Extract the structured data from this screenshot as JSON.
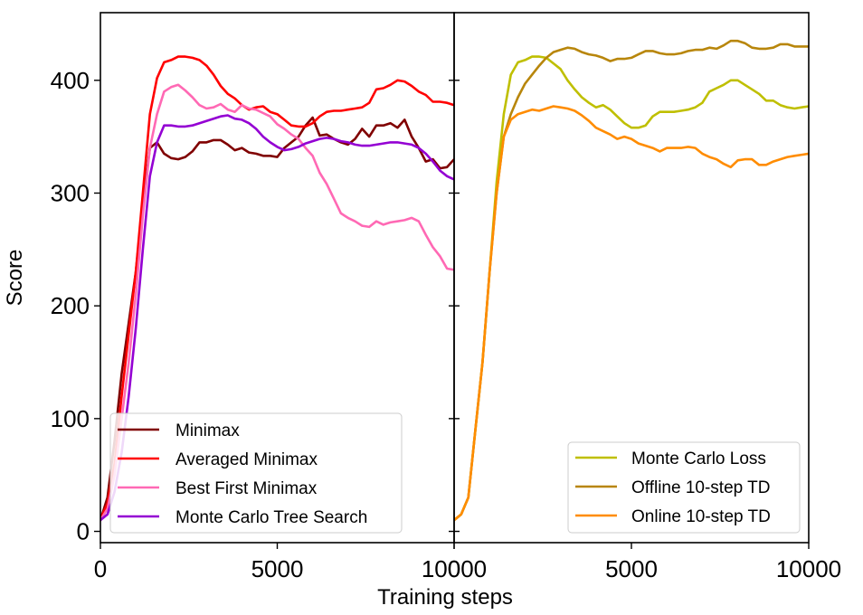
{
  "chart_data": {
    "type": "line",
    "shared_ylabel": "Score",
    "shared_xlabel": "Training steps",
    "ylim": [
      -10,
      460
    ],
    "yticks": [
      0,
      100,
      200,
      300,
      400
    ],
    "ytick_labels": [
      "0",
      "100",
      "200",
      "300",
      "400"
    ],
    "panels": [
      {
        "xlim": [
          0,
          10000
        ],
        "xticks": [
          0,
          5000,
          10000
        ],
        "xtick_labels": [
          "0",
          "5000",
          "10000"
        ],
        "legend_position": "lower-left",
        "series": [
          {
            "name": "Minimax",
            "color": "#800000",
            "x": [
              0,
              200,
              400,
              600,
              800,
              1000,
              1200,
              1400,
              1600,
              1800,
              2000,
              2200,
              2400,
              2600,
              2800,
              3000,
              3200,
              3400,
              3600,
              3800,
              4000,
              4200,
              4400,
              4600,
              4800,
              5000,
              5200,
              5400,
              5600,
              5800,
              6000,
              6200,
              6400,
              6600,
              6800,
              7000,
              7200,
              7400,
              7600,
              7800,
              8000,
              8200,
              8400,
              8600,
              8800,
              9000,
              9200,
              9400,
              9600,
              9800,
              10000
            ],
            "y": [
              10,
              30,
              80,
              140,
              185,
              230,
              290,
              340,
              345,
              335,
              331,
              330,
              332,
              337,
              345,
              345,
              347,
              347,
              343,
              338,
              340,
              336,
              335,
              333,
              333,
              332,
              340,
              345,
              350,
              360,
              367,
              351,
              352,
              348,
              345,
              343,
              348,
              357,
              350,
              360,
              360,
              362,
              358,
              365,
              350,
              340,
              328,
              330,
              322,
              323,
              330
            ]
          },
          {
            "name": "Averaged Minimax",
            "color": "#ff0000",
            "x": [
              0,
              200,
              400,
              600,
              800,
              1000,
              1200,
              1400,
              1600,
              1800,
              2000,
              2200,
              2400,
              2600,
              2800,
              3000,
              3200,
              3400,
              3600,
              3800,
              4000,
              4200,
              4400,
              4600,
              4800,
              5000,
              5200,
              5400,
              5600,
              5800,
              6000,
              6200,
              6400,
              6600,
              6800,
              7000,
              7200,
              7400,
              7600,
              7800,
              8000,
              8200,
              8400,
              8600,
              8800,
              9000,
              9200,
              9400,
              9600,
              9800,
              10000
            ],
            "y": [
              10,
              25,
              60,
              120,
              175,
              230,
              300,
              370,
              402,
              416,
              418,
              421,
              421,
              420,
              418,
              413,
              405,
              395,
              388,
              384,
              378,
              374,
              376,
              377,
              372,
              370,
              365,
              360,
              359,
              359,
              362,
              368,
              372,
              373,
              373,
              374,
              375,
              376,
              380,
              392,
              393,
              396,
              400,
              399,
              395,
              390,
              387,
              381,
              381,
              380,
              378
            ]
          },
          {
            "name": "Best First Minimax",
            "color": "#ff69b4",
            "x": [
              0,
              200,
              400,
              600,
              800,
              1000,
              1200,
              1400,
              1600,
              1800,
              2000,
              2200,
              2400,
              2600,
              2800,
              3000,
              3200,
              3400,
              3600,
              3800,
              4000,
              4200,
              4400,
              4600,
              4800,
              5000,
              5200,
              5400,
              5600,
              5800,
              6000,
              6200,
              6400,
              6600,
              6800,
              7000,
              7200,
              7400,
              7600,
              7800,
              8000,
              8200,
              8400,
              8600,
              8800,
              9000,
              9200,
              9400,
              9600,
              9800,
              10000
            ],
            "y": [
              10,
              20,
              50,
              100,
              150,
              210,
              280,
              340,
              370,
              390,
              394,
              396,
              391,
              385,
              378,
              375,
              376,
              379,
              374,
              372,
              378,
              375,
              374,
              371,
              368,
              361,
              357,
              352,
              348,
              340,
              333,
              318,
              308,
              295,
              282,
              278,
              275,
              271,
              270,
              275,
              272,
              274,
              275,
              276,
              278,
              275,
              263,
              252,
              244,
              233,
              232
            ]
          },
          {
            "name": "Monte Carlo Tree Search",
            "color": "#9400d3",
            "x": [
              0,
              200,
              400,
              600,
              800,
              1000,
              1200,
              1400,
              1600,
              1800,
              2000,
              2200,
              2400,
              2600,
              2800,
              3000,
              3200,
              3400,
              3600,
              3800,
              4000,
              4200,
              4400,
              4600,
              4800,
              5000,
              5200,
              5400,
              5600,
              5800,
              6000,
              6200,
              6400,
              6600,
              6800,
              7000,
              7200,
              7400,
              7600,
              7800,
              8000,
              8200,
              8400,
              8600,
              8800,
              9000,
              9200,
              9400,
              9600,
              9800,
              10000
            ],
            "y": [
              10,
              15,
              35,
              70,
              120,
              180,
              250,
              315,
              345,
              360,
              360,
              359,
              359,
              360,
              362,
              364,
              366,
              368,
              369,
              366,
              365,
              362,
              357,
              350,
              345,
              341,
              338,
              339,
              341,
              344,
              346,
              348,
              349,
              348,
              346,
              345,
              343,
              342,
              342,
              343,
              344,
              345,
              345,
              344,
              343,
              340,
              335,
              328,
              320,
              315,
              312
            ]
          }
        ]
      },
      {
        "xlim": [
          0,
          10000
        ],
        "xticks": [
          0,
          5000,
          10000
        ],
        "xtick_labels": [
          "0",
          "5000",
          "10000"
        ],
        "legend_position": "lower-right",
        "series": [
          {
            "name": "Monte Carlo Loss",
            "color": "#bfbf00",
            "x": [
              0,
              200,
              400,
              600,
              800,
              1000,
              1200,
              1400,
              1600,
              1800,
              2000,
              2200,
              2400,
              2600,
              2800,
              3000,
              3200,
              3400,
              3600,
              3800,
              4000,
              4200,
              4400,
              4600,
              4800,
              5000,
              5200,
              5400,
              5600,
              5800,
              6000,
              6200,
              6400,
              6600,
              6800,
              7000,
              7200,
              7400,
              7600,
              7800,
              8000,
              8200,
              8400,
              8600,
              8800,
              9000,
              9200,
              9400,
              9600,
              9800,
              10000
            ],
            "y": [
              10,
              15,
              30,
              90,
              150,
              230,
              310,
              370,
              405,
              416,
              418,
              421,
              421,
              420,
              415,
              410,
              400,
              392,
              385,
              380,
              376,
              378,
              374,
              368,
              362,
              358,
              358,
              360,
              368,
              372,
              372,
              372,
              373,
              374,
              376,
              380,
              390,
              393,
              396,
              400,
              400,
              396,
              392,
              388,
              382,
              382,
              378,
              376,
              375,
              376,
              377
            ]
          },
          {
            "name": "Offline 10-step TD",
            "color": "#b8860b",
            "x": [
              0,
              200,
              400,
              600,
              800,
              1000,
              1200,
              1400,
              1600,
              1800,
              2000,
              2200,
              2400,
              2600,
              2800,
              3000,
              3200,
              3400,
              3600,
              3800,
              4000,
              4200,
              4400,
              4600,
              4800,
              5000,
              5200,
              5400,
              5600,
              5800,
              6000,
              6200,
              6400,
              6600,
              6800,
              7000,
              7200,
              7400,
              7600,
              7800,
              8000,
              8200,
              8400,
              8600,
              8800,
              9000,
              9200,
              9400,
              9600,
              9800,
              10000
            ],
            "y": [
              10,
              15,
              30,
              90,
              150,
              230,
              300,
              350,
              370,
              385,
              397,
              405,
              413,
              420,
              425,
              427,
              429,
              428,
              425,
              423,
              422,
              420,
              417,
              419,
              419,
              420,
              423,
              426,
              426,
              424,
              423,
              423,
              424,
              426,
              427,
              427,
              429,
              428,
              431,
              435,
              435,
              433,
              429,
              428,
              428,
              429,
              432,
              432,
              430,
              430,
              430
            ]
          },
          {
            "name": "Online 10-step TD",
            "color": "#ff8c00",
            "x": [
              0,
              200,
              400,
              600,
              800,
              1000,
              1200,
              1400,
              1600,
              1800,
              2000,
              2200,
              2400,
              2600,
              2800,
              3000,
              3200,
              3400,
              3600,
              3800,
              4000,
              4200,
              4400,
              4600,
              4800,
              5000,
              5200,
              5400,
              5600,
              5800,
              6000,
              6200,
              6400,
              6600,
              6800,
              7000,
              7200,
              7400,
              7600,
              7800,
              8000,
              8200,
              8400,
              8600,
              8800,
              9000,
              9200,
              9400,
              9600,
              9800,
              10000
            ],
            "y": [
              10,
              15,
              30,
              90,
              150,
              230,
              300,
              350,
              365,
              370,
              372,
              374,
              373,
              375,
              377,
              376,
              375,
              373,
              369,
              364,
              358,
              355,
              352,
              348,
              350,
              348,
              344,
              342,
              340,
              337,
              340,
              340,
              340,
              341,
              340,
              335,
              332,
              330,
              326,
              323,
              329,
              330,
              330,
              325,
              325,
              328,
              330,
              332,
              333,
              334,
              335
            ]
          }
        ]
      }
    ]
  }
}
